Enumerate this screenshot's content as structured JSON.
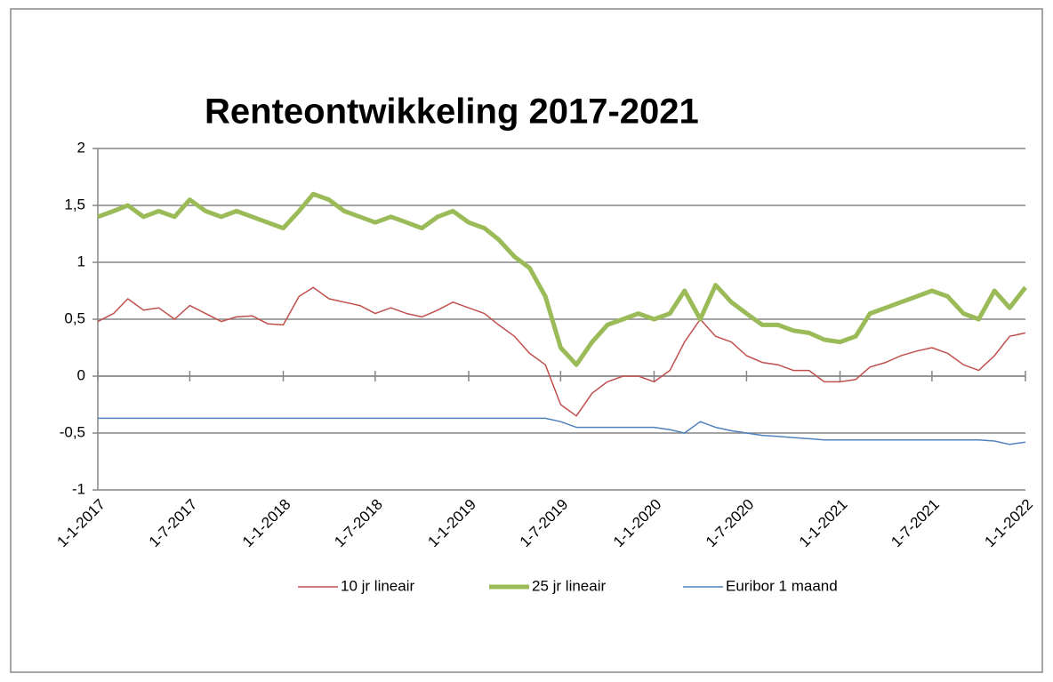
{
  "chart_data": {
    "type": "line",
    "title": "Renteontwikkeling 2017-2021",
    "x": [
      "2017-01-01",
      "2017-02-01",
      "2017-03-01",
      "2017-04-01",
      "2017-05-01",
      "2017-06-01",
      "2017-07-01",
      "2017-08-01",
      "2017-09-01",
      "2017-10-01",
      "2017-11-01",
      "2017-12-01",
      "2018-01-01",
      "2018-02-01",
      "2018-03-01",
      "2018-04-01",
      "2018-05-01",
      "2018-06-01",
      "2018-07-01",
      "2018-08-01",
      "2018-09-01",
      "2018-10-01",
      "2018-11-01",
      "2018-12-01",
      "2019-01-01",
      "2019-02-01",
      "2019-03-01",
      "2019-04-01",
      "2019-05-01",
      "2019-06-01",
      "2019-07-01",
      "2019-08-01",
      "2019-09-01",
      "2019-10-01",
      "2019-11-01",
      "2019-12-01",
      "2020-01-01",
      "2020-02-01",
      "2020-03-01",
      "2020-04-01",
      "2020-05-01",
      "2020-06-01",
      "2020-07-01",
      "2020-08-01",
      "2020-09-01",
      "2020-10-01",
      "2020-11-01",
      "2020-12-01",
      "2021-01-01",
      "2021-02-01",
      "2021-03-01",
      "2021-04-01",
      "2021-05-01",
      "2021-06-01",
      "2021-07-01",
      "2021-08-01",
      "2021-09-01",
      "2021-10-01",
      "2021-11-01",
      "2021-12-01",
      "2022-01-01"
    ],
    "series": [
      {
        "name": "10 jr lineair",
        "color": "#c0504d",
        "width": 1.5,
        "values": [
          0.48,
          0.55,
          0.68,
          0.58,
          0.6,
          0.5,
          0.62,
          0.55,
          0.48,
          0.52,
          0.53,
          0.46,
          0.45,
          0.7,
          0.78,
          0.68,
          0.65,
          0.62,
          0.55,
          0.6,
          0.55,
          0.52,
          0.58,
          0.65,
          0.6,
          0.55,
          0.45,
          0.35,
          0.2,
          0.1,
          -0.25,
          -0.35,
          -0.15,
          -0.05,
          0,
          0,
          -0.05,
          0.05,
          0.3,
          0.5,
          0.35,
          0.3,
          0.18,
          0.12,
          0.1,
          0.05,
          0.05,
          -0.05,
          -0.05,
          -0.03,
          0.08,
          0.12,
          0.18,
          0.22,
          0.25,
          0.2,
          0.1,
          0.05,
          0.18,
          0.35,
          0.38
        ]
      },
      {
        "name": "25 jr lineair",
        "color": "#9bbb59",
        "width": 5,
        "values": [
          1.4,
          1.45,
          1.5,
          1.4,
          1.45,
          1.4,
          1.55,
          1.45,
          1.4,
          1.45,
          1.4,
          1.35,
          1.3,
          1.45,
          1.6,
          1.55,
          1.45,
          1.4,
          1.35,
          1.4,
          1.35,
          1.3,
          1.4,
          1.45,
          1.35,
          1.3,
          1.2,
          1.05,
          0.95,
          0.7,
          0.25,
          0.1,
          0.3,
          0.45,
          0.5,
          0.55,
          0.5,
          0.55,
          0.75,
          0.5,
          0.8,
          0.65,
          0.55,
          0.45,
          0.45,
          0.4,
          0.38,
          0.32,
          0.3,
          0.35,
          0.55,
          0.6,
          0.65,
          0.7,
          0.75,
          0.7,
          0.55,
          0.5,
          0.75,
          0.6,
          0.78
        ]
      },
      {
        "name": "Euribor 1 maand",
        "color": "#4f81bd",
        "width": 1.5,
        "values": [
          -0.37,
          -0.37,
          -0.37,
          -0.37,
          -0.37,
          -0.37,
          -0.37,
          -0.37,
          -0.37,
          -0.37,
          -0.37,
          -0.37,
          -0.37,
          -0.37,
          -0.37,
          -0.37,
          -0.37,
          -0.37,
          -0.37,
          -0.37,
          -0.37,
          -0.37,
          -0.37,
          -0.37,
          -0.37,
          -0.37,
          -0.37,
          -0.37,
          -0.37,
          -0.37,
          -0.4,
          -0.45,
          -0.45,
          -0.45,
          -0.45,
          -0.45,
          -0.45,
          -0.47,
          -0.5,
          -0.4,
          -0.45,
          -0.48,
          -0.5,
          -0.52,
          -0.53,
          -0.54,
          -0.55,
          -0.56,
          -0.56,
          -0.56,
          -0.56,
          -0.56,
          -0.56,
          -0.56,
          -0.56,
          -0.56,
          -0.56,
          -0.56,
          -0.57,
          -0.6,
          -0.58
        ]
      }
    ],
    "xlim": [
      "2017-01-01",
      "2022-01-01"
    ],
    "xticks": [
      {
        "value": "2017-01-01",
        "label": "1-1-2017"
      },
      {
        "value": "2017-07-01",
        "label": "1-7-2017"
      },
      {
        "value": "2018-01-01",
        "label": "1-1-2018"
      },
      {
        "value": "2018-07-01",
        "label": "1-7-2018"
      },
      {
        "value": "2019-01-01",
        "label": "1-1-2019"
      },
      {
        "value": "2019-07-01",
        "label": "1-7-2019"
      },
      {
        "value": "2020-01-01",
        "label": "1-1-2020"
      },
      {
        "value": "2020-07-01",
        "label": "1-7-2020"
      },
      {
        "value": "2021-01-01",
        "label": "1-1-2021"
      },
      {
        "value": "2021-07-01",
        "label": "1-7-2021"
      },
      {
        "value": "2022-01-01",
        "label": "1-1-2022"
      }
    ],
    "ylim": [
      -1,
      2
    ],
    "yticks": [
      -1,
      {
        "value": -0.5,
        "label": "-0,5"
      },
      0,
      {
        "value": 0.5,
        "label": "0,5"
      },
      1,
      {
        "value": 1.5,
        "label": "1,5"
      },
      2
    ],
    "grid": true,
    "legend": "bottom"
  }
}
